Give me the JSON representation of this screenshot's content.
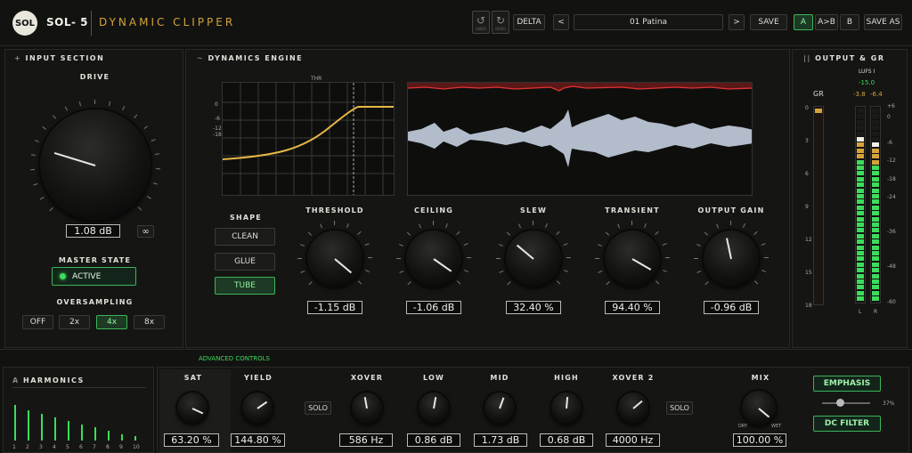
{
  "header": {
    "logo": "SOL",
    "brand": "SOL- 5",
    "subtitle": "DYNAMIC CLIPPER",
    "undo_label": "UNDO",
    "redo_label": "REDO",
    "delta": "DELTA",
    "prev": "<",
    "preset": "01 Patina",
    "next": ">",
    "save": "SAVE",
    "a": "A",
    "atob": "A>B",
    "b": "B",
    "save_as": "SAVE AS"
  },
  "input": {
    "title": "INPUT SECTION",
    "title_icon": "+",
    "drive_label": "DRIVE",
    "drive_value": "1.08 dB",
    "link_icon": "link-icon",
    "master_label": "MASTER STATE",
    "master_value": "ACTIVE",
    "oversampling_label": "OVERSAMPLING",
    "os": [
      "OFF",
      "2x",
      "4x",
      "8x"
    ],
    "os_selected": "4x"
  },
  "dynamics": {
    "title": "DYNAMICS ENGINE",
    "title_icon": "~",
    "thr": "THR",
    "curve_scale": [
      "0",
      "-6",
      "-12",
      "-18"
    ],
    "shape_label": "SHAPE",
    "shapes": [
      "CLEAN",
      "GLUE",
      "TUBE"
    ],
    "shape_selected": "TUBE",
    "knobs": [
      {
        "label": "THRESHOLD",
        "value": "-1.15 dB"
      },
      {
        "label": "CEILING",
        "value": "-1.06 dB"
      },
      {
        "label": "SLEW",
        "value": "32.40 %"
      },
      {
        "label": "TRANSIENT",
        "value": "94.40 %"
      },
      {
        "label": "OUTPUT GAIN",
        "value": "-0.96 dB"
      }
    ]
  },
  "output": {
    "title": "OUTPUT & GR",
    "title_icon": "||",
    "gr_label": "GR",
    "lufs_label": "LUFS I",
    "lufs_value": "-15.0",
    "peak_l": "-3.8",
    "peak_r": "-6.4",
    "gr_scale": [
      "0",
      "3",
      "6",
      "9",
      "12",
      "15",
      "18"
    ],
    "db_scale": [
      "+6",
      "0",
      "-6",
      "-12",
      "-18",
      "-24",
      "-36",
      "-48",
      "-60"
    ],
    "l": "L",
    "r": "R"
  },
  "advanced": {
    "label": "ADVANCED CONTROLS"
  },
  "harmonics": {
    "title": "HARMONICS",
    "title_icon": "A",
    "numbers": [
      "1",
      "2",
      "3",
      "4",
      "5",
      "6",
      "7",
      "8",
      "9",
      "10"
    ],
    "levels": [
      0.72,
      0.62,
      0.55,
      0.47,
      0.4,
      0.33,
      0.27,
      0.2,
      0.13,
      0.1
    ]
  },
  "bottom": {
    "sat": {
      "label": "SAT",
      "value": "63.20 %"
    },
    "yield": {
      "label": "YIELD",
      "value": "144.80 %"
    },
    "solo1": "SOLO",
    "xover": {
      "label": "XOVER",
      "value": "586 Hz"
    },
    "low": {
      "label": "LOW",
      "value": "0.86 dB"
    },
    "mid": {
      "label": "MID",
      "value": "1.73 dB"
    },
    "high": {
      "label": "HIGH",
      "value": "0.68 dB"
    },
    "xover2": {
      "label": "XOVER 2",
      "value": "4000 Hz"
    },
    "solo2": "SOLO",
    "mix": {
      "label": "MIX",
      "value": "100.00 %",
      "dry": "DRY",
      "wet": "WET"
    },
    "emphasis": "EMPHASIS",
    "emphasis_amount": "37%",
    "emphasis_level": 0.37,
    "dc_filter": "DC FILTER"
  },
  "colors": {
    "accent_green": "#3ddc5a",
    "gold": "#d5a23a",
    "red": "#e03434"
  }
}
